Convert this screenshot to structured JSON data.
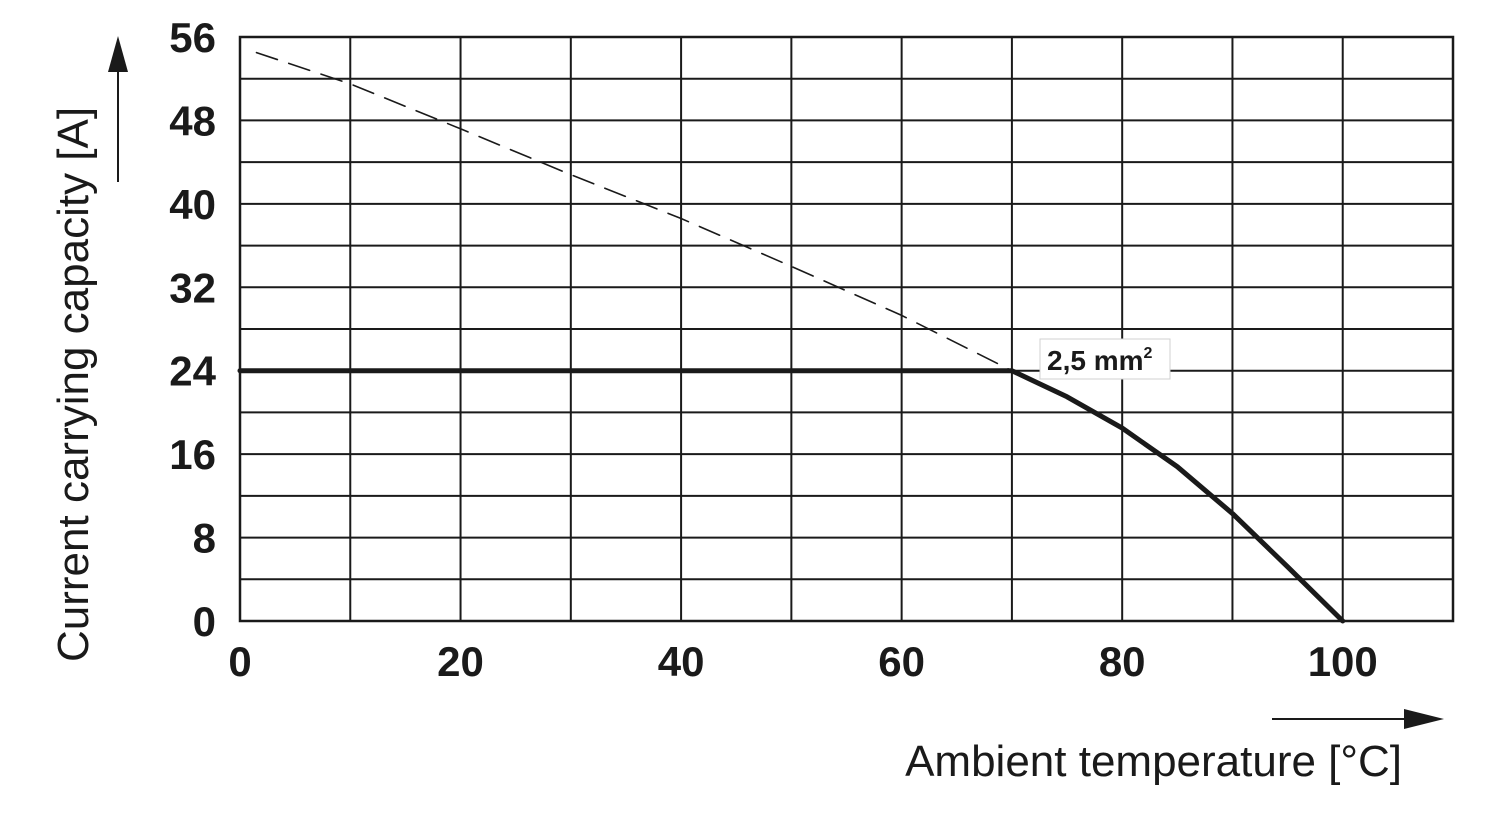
{
  "chart_data": {
    "type": "line",
    "xlabel": "Ambient temperature [°C]",
    "ylabel": "Current carrying capacity [A]",
    "xlim": [
      0,
      110
    ],
    "ylim": [
      0,
      56
    ],
    "x_ticks": [
      0,
      20,
      40,
      60,
      80,
      100
    ],
    "y_ticks": [
      0,
      8,
      16,
      24,
      32,
      40,
      48,
      56
    ],
    "grid": true,
    "legend": "none",
    "series": [
      {
        "name": "2,5 mm²",
        "style": "solid",
        "x": [
          0,
          70,
          75,
          80,
          85,
          90,
          95,
          100
        ],
        "y": [
          24,
          24,
          21.5,
          18.5,
          14.8,
          10.3,
          5.2,
          0
        ]
      },
      {
        "style": "dashed",
        "x": [
          1.5,
          10,
          20,
          30,
          40,
          50,
          60,
          70
        ],
        "y": [
          54.5,
          51.5,
          47.2,
          42.8,
          38.6,
          34,
          29.3,
          24
        ]
      }
    ],
    "annotations": [
      {
        "text_main": "2,5 mm",
        "text_sup": "2",
        "x": 70,
        "y": 24
      }
    ]
  }
}
